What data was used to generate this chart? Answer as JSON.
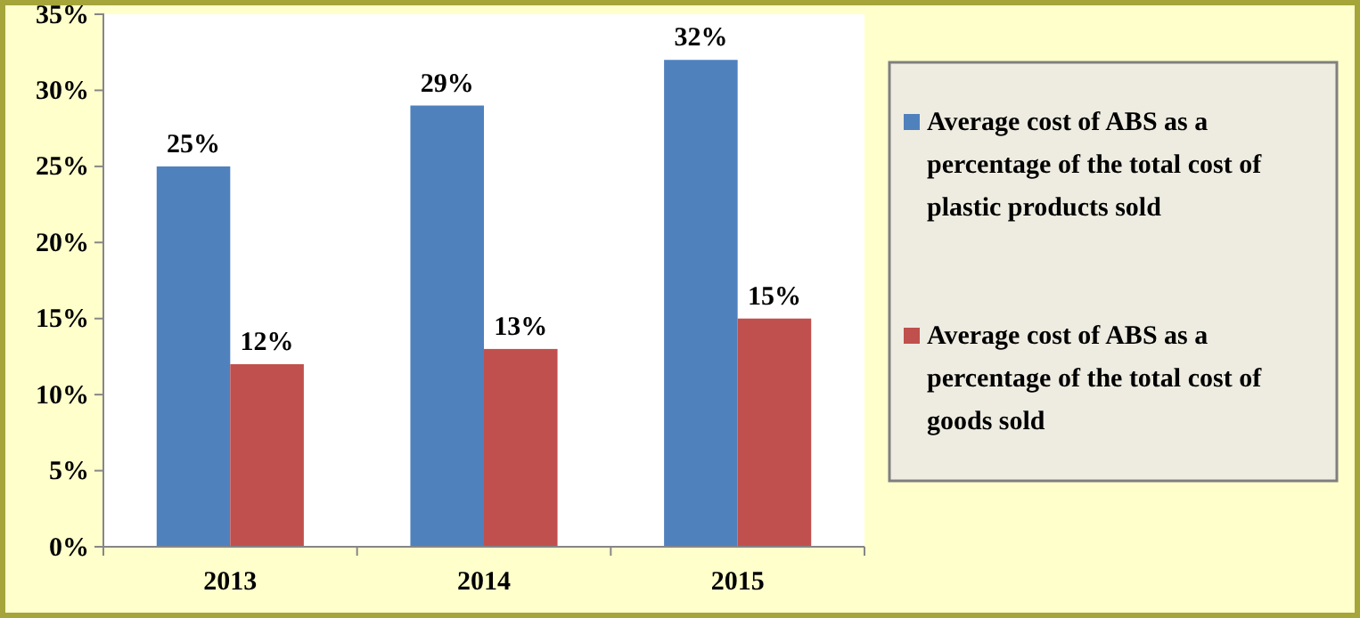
{
  "chart_data": {
    "type": "bar",
    "categories": [
      "2013",
      "2014",
      "2015"
    ],
    "series": [
      {
        "name": "Average cost of ABS as a percentage of the total cost of plastic products sold",
        "color": "#4f81bd",
        "values": [
          25,
          29,
          32
        ],
        "value_labels": [
          "25%",
          "29%",
          "32%"
        ]
      },
      {
        "name": "Average cost of ABS as a percentage of the total cost of goods sold",
        "color": "#c0504d",
        "values": [
          12,
          13,
          15
        ],
        "value_labels": [
          "12%",
          "13%",
          "15%"
        ]
      }
    ],
    "ylim": [
      0,
      35
    ],
    "yticks": [
      {
        "value": 0,
        "label": "0%"
      },
      {
        "value": 5,
        "label": "5%"
      },
      {
        "value": 10,
        "label": "10%"
      },
      {
        "value": 15,
        "label": "15%"
      },
      {
        "value": 20,
        "label": "20%"
      },
      {
        "value": 25,
        "label": "25%"
      },
      {
        "value": 30,
        "label": "30%"
      },
      {
        "value": 35,
        "label": "35%"
      }
    ],
    "legend": "right"
  }
}
